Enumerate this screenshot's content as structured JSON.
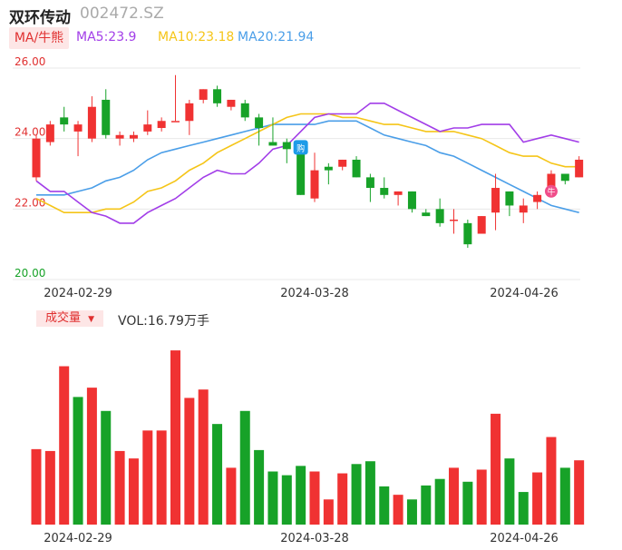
{
  "header": {
    "name": "双环传动",
    "code": "002472.SZ",
    "ma_button": "MA/牛熊",
    "ma5": "MA5:23.9",
    "ma10": "MA10:23.18",
    "ma20": "MA20:21.94"
  },
  "volume_header": {
    "button": "成交量",
    "vol": "VOL:16.79万手"
  },
  "markers": {
    "buy": "购",
    "bull": "牛"
  },
  "colors": {
    "up": "#f03232",
    "down": "#17a228",
    "ma5": "#a23ee8",
    "ma10": "#f5c518",
    "ma20": "#4a9ee8",
    "axis_text": "#e03030"
  },
  "chart_data": [
    {
      "type": "candlestick",
      "y_ticks": [
        "26.00",
        "24.00",
        "22.00",
        "20.00"
      ],
      "ylim": [
        20,
        26
      ],
      "x_labels": [
        "2024-02-29",
        "2024-03-28",
        "2024-04-26"
      ],
      "candles": [
        {
          "o": 22.9,
          "c": 24.0,
          "h": 24.1,
          "l": 22.8
        },
        {
          "o": 23.9,
          "c": 24.4,
          "h": 24.5,
          "l": 23.8
        },
        {
          "o": 24.6,
          "c": 24.4,
          "h": 24.9,
          "l": 24.2
        },
        {
          "o": 24.2,
          "c": 24.4,
          "h": 24.5,
          "l": 23.5
        },
        {
          "o": 24.0,
          "c": 24.9,
          "h": 25.2,
          "l": 23.9
        },
        {
          "o": 25.1,
          "c": 24.1,
          "h": 25.4,
          "l": 24.0
        },
        {
          "o": 24.0,
          "c": 24.1,
          "h": 24.2,
          "l": 23.8
        },
        {
          "o": 24.0,
          "c": 24.1,
          "h": 24.2,
          "l": 23.9
        },
        {
          "o": 24.2,
          "c": 24.4,
          "h": 24.8,
          "l": 24.1
        },
        {
          "o": 24.3,
          "c": 24.5,
          "h": 24.6,
          "l": 24.2
        },
        {
          "o": 24.5,
          "c": 24.5,
          "h": 25.8,
          "l": 24.5
        },
        {
          "o": 24.5,
          "c": 25.0,
          "h": 25.1,
          "l": 24.1
        },
        {
          "o": 25.1,
          "c": 25.4,
          "h": 25.4,
          "l": 25.0
        },
        {
          "o": 25.4,
          "c": 25.0,
          "h": 25.5,
          "l": 24.9
        },
        {
          "o": 24.9,
          "c": 25.1,
          "h": 25.1,
          "l": 24.8
        },
        {
          "o": 25.0,
          "c": 24.6,
          "h": 25.1,
          "l": 24.5
        },
        {
          "o": 24.6,
          "c": 24.3,
          "h": 24.7,
          "l": 23.8
        },
        {
          "o": 23.9,
          "c": 23.8,
          "h": 24.6,
          "l": 23.8
        },
        {
          "o": 23.9,
          "c": 23.7,
          "h": 24.0,
          "l": 23.3
        },
        {
          "o": 23.7,
          "c": 22.4,
          "h": 23.8,
          "l": 22.4
        },
        {
          "o": 22.3,
          "c": 23.1,
          "h": 23.6,
          "l": 22.2
        },
        {
          "o": 23.2,
          "c": 23.1,
          "h": 23.3,
          "l": 22.7
        },
        {
          "o": 23.2,
          "c": 23.4,
          "h": 23.4,
          "l": 23.1
        },
        {
          "o": 23.4,
          "c": 22.9,
          "h": 23.5,
          "l": 22.9
        },
        {
          "o": 22.9,
          "c": 22.6,
          "h": 23.0,
          "l": 22.2
        },
        {
          "o": 22.6,
          "c": 22.4,
          "h": 22.9,
          "l": 22.3
        },
        {
          "o": 22.4,
          "c": 22.5,
          "h": 22.5,
          "l": 22.1
        },
        {
          "o": 22.5,
          "c": 22.0,
          "h": 22.5,
          "l": 21.9
        },
        {
          "o": 21.9,
          "c": 21.8,
          "h": 22.0,
          "l": 21.8
        },
        {
          "o": 22.0,
          "c": 21.6,
          "h": 22.3,
          "l": 21.5
        },
        {
          "o": 21.7,
          "c": 21.7,
          "h": 22.0,
          "l": 21.3
        },
        {
          "o": 21.6,
          "c": 21.0,
          "h": 21.7,
          "l": 20.9
        },
        {
          "o": 21.3,
          "c": 21.8,
          "h": 21.8,
          "l": 21.3
        },
        {
          "o": 21.9,
          "c": 22.6,
          "h": 23.0,
          "l": 21.4
        },
        {
          "o": 22.5,
          "c": 22.1,
          "h": 22.5,
          "l": 21.8
        },
        {
          "o": 21.9,
          "c": 22.1,
          "h": 22.3,
          "l": 21.6
        },
        {
          "o": 22.2,
          "c": 22.4,
          "h": 22.5,
          "l": 22.0
        },
        {
          "o": 22.4,
          "c": 23.0,
          "h": 23.1,
          "l": 22.4
        },
        {
          "o": 23.0,
          "c": 22.8,
          "h": 23.0,
          "l": 22.7
        },
        {
          "o": 22.9,
          "c": 23.4,
          "h": 23.5,
          "l": 22.9
        }
      ],
      "ma5": [
        22.8,
        22.5,
        22.5,
        22.2,
        21.9,
        21.8,
        21.6,
        21.6,
        21.9,
        22.1,
        22.3,
        22.6,
        22.9,
        23.1,
        23.0,
        23.0,
        23.3,
        23.7,
        23.8,
        24.2,
        24.6,
        24.7,
        24.7,
        24.7,
        25.0,
        25.0,
        24.8,
        24.6,
        24.4,
        24.2,
        24.3,
        24.3,
        24.4,
        24.4,
        24.4,
        23.9,
        24.0,
        24.1,
        24.0,
        23.9
      ],
      "ma10": [
        22.3,
        22.1,
        21.9,
        21.9,
        21.9,
        22.0,
        22.0,
        22.2,
        22.5,
        22.6,
        22.8,
        23.1,
        23.3,
        23.6,
        23.8,
        24.0,
        24.2,
        24.4,
        24.6,
        24.7,
        24.7,
        24.7,
        24.6,
        24.6,
        24.5,
        24.4,
        24.4,
        24.3,
        24.2,
        24.2,
        24.2,
        24.1,
        24.0,
        23.8,
        23.6,
        23.5,
        23.5,
        23.3,
        23.2,
        23.2
      ],
      "ma20": [
        22.4,
        22.4,
        22.4,
        22.5,
        22.6,
        22.8,
        22.9,
        23.1,
        23.4,
        23.6,
        23.7,
        23.8,
        23.9,
        24.0,
        24.1,
        24.2,
        24.3,
        24.4,
        24.4,
        24.4,
        24.4,
        24.5,
        24.5,
        24.5,
        24.3,
        24.1,
        24.0,
        23.9,
        23.8,
        23.6,
        23.5,
        23.3,
        23.1,
        22.9,
        22.7,
        22.5,
        22.3,
        22.1,
        22.0,
        21.9
      ],
      "buy_marker_index": 19,
      "bull_marker_index": 37
    },
    {
      "type": "bar",
      "x_labels": [
        "2024-02-29",
        "2024-03-28",
        "2024-04-26"
      ],
      "ylim": [
        0,
        190
      ],
      "values": [
        81,
        79,
        170,
        137,
        147,
        122,
        79,
        71,
        101,
        101,
        187,
        136,
        145,
        108,
        61,
        122,
        80,
        57,
        53,
        63,
        57,
        27,
        55,
        65,
        68,
        41,
        32,
        27,
        42,
        49,
        61,
        46,
        59,
        119,
        71,
        35,
        56,
        94,
        61,
        69
      ],
      "directions": [
        "up",
        "up",
        "up",
        "down",
        "up",
        "down",
        "up",
        "up",
        "up",
        "up",
        "up",
        "up",
        "up",
        "down",
        "up",
        "down",
        "down",
        "down",
        "down",
        "down",
        "up",
        "up",
        "up",
        "down",
        "down",
        "down",
        "up",
        "down",
        "down",
        "down",
        "up",
        "down",
        "up",
        "up",
        "down",
        "down",
        "up",
        "up",
        "down",
        "up"
      ]
    }
  ]
}
